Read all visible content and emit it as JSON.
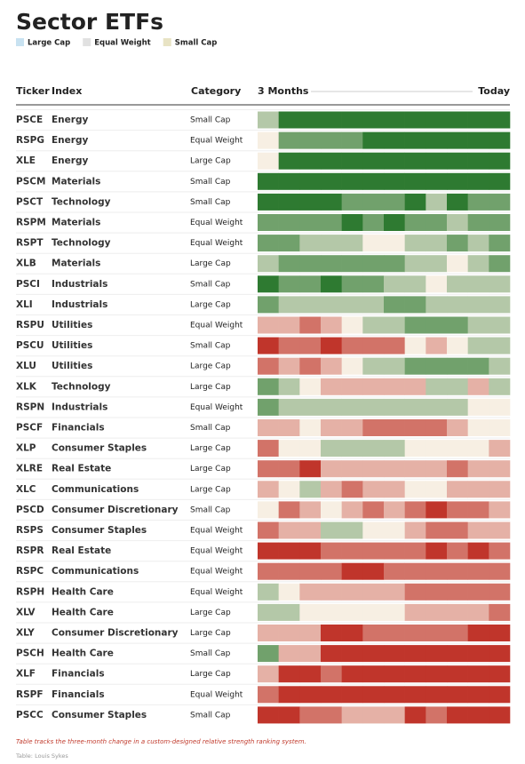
{
  "title": "Sector ETFs",
  "legend": [
    {
      "label": "Large Cap",
      "color": "#4a9fd0"
    },
    {
      "label": "Equal Weight",
      "color": "#9a9a9a"
    },
    {
      "label": "Small Cap",
      "color": "#b3a23a"
    }
  ],
  "header": {
    "ticker": "Ticker",
    "index": "Index",
    "category": "Category",
    "start": "3 Months",
    "end": "Today"
  },
  "heat_colors": [
    "#c0352b",
    "#f7efe3",
    "#2e7a31"
  ],
  "rows": [
    {
      "ticker": "PSCE",
      "index": "Energy",
      "category": "Small Cap",
      "scores": [
        1,
        3,
        3,
        3,
        3,
        3,
        3,
        3,
        3,
        3,
        3,
        3
      ]
    },
    {
      "ticker": "RSPG",
      "index": "Energy",
      "category": "Equal Weight",
      "scores": [
        0,
        2,
        2,
        2,
        2,
        3,
        3,
        3,
        3,
        3,
        3,
        3
      ]
    },
    {
      "ticker": "XLE",
      "index": "Energy",
      "category": "Large Cap",
      "scores": [
        0,
        3,
        3,
        3,
        3,
        3,
        3,
        3,
        3,
        3,
        3,
        3
      ]
    },
    {
      "ticker": "PSCM",
      "index": "Materials",
      "category": "Small Cap",
      "scores": [
        3,
        3,
        3,
        3,
        3,
        3,
        3,
        3,
        3,
        3,
        3,
        3
      ]
    },
    {
      "ticker": "PSCT",
      "index": "Technology",
      "category": "Small Cap",
      "scores": [
        3,
        3,
        3,
        3,
        2,
        2,
        2,
        3,
        1,
        3,
        2,
        2
      ]
    },
    {
      "ticker": "RSPM",
      "index": "Materials",
      "category": "Equal Weight",
      "scores": [
        2,
        2,
        2,
        2,
        3,
        2,
        3,
        2,
        2,
        1,
        2,
        2
      ]
    },
    {
      "ticker": "RSPT",
      "index": "Technology",
      "category": "Equal Weight",
      "scores": [
        2,
        2,
        1,
        1,
        1,
        0,
        0,
        1,
        1,
        2,
        1,
        2
      ]
    },
    {
      "ticker": "XLB",
      "index": "Materials",
      "category": "Large Cap",
      "scores": [
        1,
        2,
        2,
        2,
        2,
        2,
        2,
        1,
        1,
        0,
        1,
        2
      ]
    },
    {
      "ticker": "PSCI",
      "index": "Industrials",
      "category": "Small Cap",
      "scores": [
        3,
        2,
        2,
        3,
        2,
        2,
        1,
        1,
        0,
        1,
        1,
        1
      ]
    },
    {
      "ticker": "XLI",
      "index": "Industrials",
      "category": "Large Cap",
      "scores": [
        2,
        1,
        1,
        1,
        1,
        1,
        2,
        2,
        1,
        1,
        1,
        1
      ]
    },
    {
      "ticker": "RSPU",
      "index": "Utilities",
      "category": "Equal Weight",
      "scores": [
        -1,
        -1,
        -2,
        -1,
        0,
        1,
        1,
        2,
        2,
        2,
        1,
        1
      ]
    },
    {
      "ticker": "PSCU",
      "index": "Utilities",
      "category": "Small Cap",
      "scores": [
        -3,
        -2,
        -2,
        -3,
        -2,
        -2,
        -2,
        0,
        -1,
        0,
        1,
        1
      ]
    },
    {
      "ticker": "XLU",
      "index": "Utilities",
      "category": "Large Cap",
      "scores": [
        -2,
        -1,
        -2,
        -1,
        0,
        1,
        1,
        2,
        2,
        2,
        2,
        1
      ]
    },
    {
      "ticker": "XLK",
      "index": "Technology",
      "category": "Large Cap",
      "scores": [
        2,
        1,
        0,
        -1,
        -1,
        -1,
        -1,
        -1,
        1,
        1,
        -1,
        1
      ]
    },
    {
      "ticker": "RSPN",
      "index": "Industrials",
      "category": "Equal Weight",
      "scores": [
        2,
        1,
        1,
        1,
        1,
        1,
        1,
        1,
        1,
        1,
        0,
        0
      ]
    },
    {
      "ticker": "PSCF",
      "index": "Financials",
      "category": "Small Cap",
      "scores": [
        -1,
        -1,
        0,
        -1,
        -1,
        -2,
        -2,
        -2,
        -2,
        -1,
        0,
        0
      ]
    },
    {
      "ticker": "XLP",
      "index": "Consumer Staples",
      "category": "Large Cap",
      "scores": [
        -2,
        0,
        0,
        1,
        1,
        1,
        1,
        0,
        0,
        0,
        0,
        -1
      ]
    },
    {
      "ticker": "XLRE",
      "index": "Real Estate",
      "category": "Large Cap",
      "scores": [
        -2,
        -2,
        -3,
        -1,
        -1,
        -1,
        -1,
        -1,
        -1,
        -2,
        -1,
        -1
      ]
    },
    {
      "ticker": "XLC",
      "index": "Communications",
      "category": "Large Cap",
      "scores": [
        -1,
        0,
        1,
        -1,
        -2,
        -1,
        -1,
        0,
        0,
        -1,
        -1,
        -1
      ]
    },
    {
      "ticker": "PSCD",
      "index": "Consumer Discretionary",
      "category": "Small Cap",
      "scores": [
        0,
        -2,
        -1,
        0,
        -1,
        -2,
        -1,
        -2,
        -3,
        -2,
        -2,
        -1
      ]
    },
    {
      "ticker": "RSPS",
      "index": "Consumer Staples",
      "category": "Equal Weight",
      "scores": [
        -2,
        -1,
        -1,
        1,
        1,
        0,
        0,
        -1,
        -2,
        -2,
        -1,
        -1
      ]
    },
    {
      "ticker": "RSPR",
      "index": "Real Estate",
      "category": "Equal Weight",
      "scores": [
        -3,
        -3,
        -3,
        -2,
        -2,
        -2,
        -2,
        -2,
        -3,
        -2,
        -3,
        -2
      ]
    },
    {
      "ticker": "RSPC",
      "index": "Communications",
      "category": "Equal Weight",
      "scores": [
        -2,
        -2,
        -2,
        -2,
        -3,
        -3,
        -2,
        -2,
        -2,
        -2,
        -2,
        -2
      ]
    },
    {
      "ticker": "RSPH",
      "index": "Health Care",
      "category": "Equal Weight",
      "scores": [
        1,
        0,
        -1,
        -1,
        -1,
        -1,
        -1,
        -2,
        -2,
        -2,
        -2,
        -2
      ]
    },
    {
      "ticker": "XLV",
      "index": "Health Care",
      "category": "Large Cap",
      "scores": [
        1,
        1,
        0,
        0,
        0,
        0,
        0,
        -1,
        -1,
        -1,
        -1,
        -2
      ]
    },
    {
      "ticker": "XLY",
      "index": "Consumer Discretionary",
      "category": "Large Cap",
      "scores": [
        -1,
        -1,
        -1,
        -3,
        -3,
        -2,
        -2,
        -2,
        -2,
        -2,
        -3,
        -3
      ]
    },
    {
      "ticker": "PSCH",
      "index": "Health Care",
      "category": "Small Cap",
      "scores": [
        2,
        -1,
        -1,
        -3,
        -3,
        -3,
        -3,
        -3,
        -3,
        -3,
        -3,
        -3
      ]
    },
    {
      "ticker": "XLF",
      "index": "Financials",
      "category": "Large Cap",
      "scores": [
        -1,
        -3,
        -3,
        -2,
        -3,
        -3,
        -3,
        -3,
        -3,
        -3,
        -3,
        -3
      ]
    },
    {
      "ticker": "RSPF",
      "index": "Financials",
      "category": "Equal Weight",
      "scores": [
        -2,
        -3,
        -3,
        -3,
        -3,
        -3,
        -3,
        -3,
        -3,
        -3,
        -3,
        -3
      ]
    },
    {
      "ticker": "PSCC",
      "index": "Consumer Staples",
      "category": "Small Cap",
      "scores": [
        -3,
        -3,
        -2,
        -2,
        -1,
        -1,
        -1,
        -3,
        -2,
        -3,
        -3,
        -3
      ]
    }
  ],
  "note": "Table tracks the three-month change in a custom-designed relative strength ranking system.",
  "source": "Table: Louis Sykes"
}
